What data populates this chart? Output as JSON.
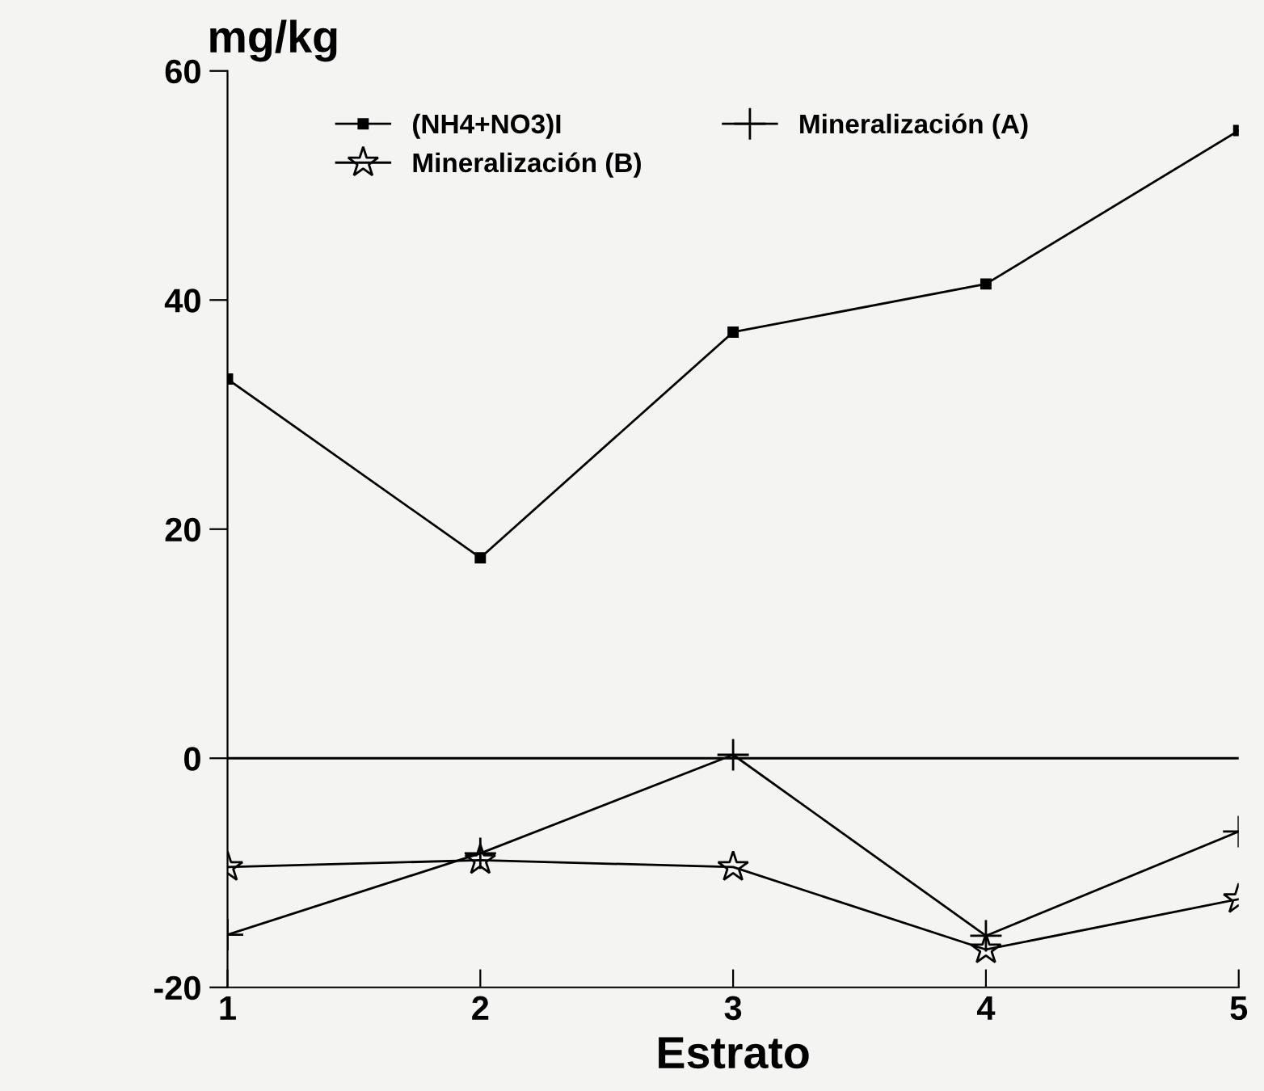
{
  "chart_data": {
    "type": "line",
    "ylabel": "mg/kg",
    "xlabel": "Estrato",
    "x": [
      1,
      2,
      3,
      4,
      5
    ],
    "xlim": [
      1,
      5
    ],
    "xticks": [
      1,
      2,
      3,
      4,
      5
    ],
    "ylim": [
      -20,
      60
    ],
    "yticks": [
      -20,
      0,
      20,
      40,
      60
    ],
    "grid": false,
    "legend": "top",
    "line_style": "solid",
    "series": [
      {
        "name": "(NH4+NO3)I",
        "color": "#000000",
        "marker": "square",
        "values": [
          33.1,
          17.5,
          37.2,
          41.4,
          54.8
        ]
      },
      {
        "name": "Mineralización (B)",
        "color": "#000000",
        "marker": "star",
        "values": [
          -9.5,
          -8.9,
          -9.5,
          -16.7,
          -12.3
        ]
      },
      {
        "name": "Mineralización (A)",
        "color": "#000000",
        "marker": "cross",
        "values": [
          -15.4,
          -8.3,
          0.3,
          -15.5,
          -6.4
        ]
      }
    ],
    "ref_lines": [
      {
        "axis": "y",
        "value": 0,
        "color": "#000000"
      }
    ]
  }
}
